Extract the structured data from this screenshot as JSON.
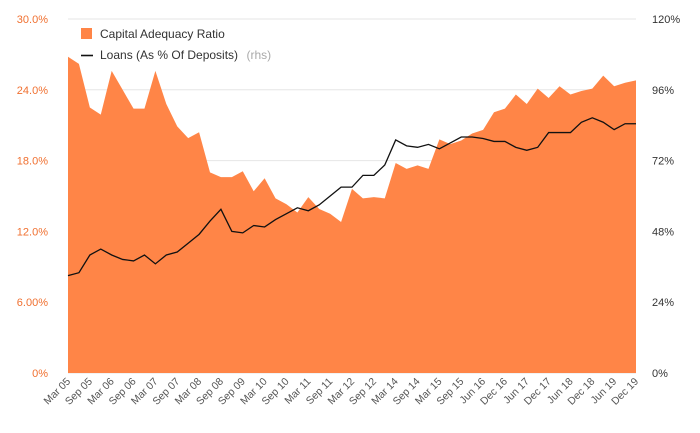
{
  "chart_data": {
    "type": "area",
    "colors": {
      "area": "#ff8547",
      "line": "#111111",
      "left_axis": "#f07030",
      "grid": "#e6e6e6"
    },
    "legend": {
      "placement": "top-left",
      "items": [
        {
          "label": "Capital Adequacy Ratio",
          "suffix": ""
        },
        {
          "label": "Loans (As % Of Deposits)",
          "suffix": "(rhs)"
        }
      ]
    },
    "y_left": {
      "min": 0,
      "max": 30,
      "ticks": [
        "0%",
        "6.00%",
        "12.0%",
        "18.0%",
        "24.0%",
        "30.0%"
      ]
    },
    "y_right": {
      "min": 0,
      "max": 120,
      "ticks": [
        "0%",
        "24%",
        "48%",
        "72%",
        "96%",
        "120%"
      ]
    },
    "x_labels": [
      "Mar 05",
      "Sep 05",
      "Mar 06",
      "Sep 06",
      "Mar 07",
      "Sep 07",
      "Mar 08",
      "Sep 08",
      "Sep 09",
      "Mar 10",
      "Sep 10",
      "Mar 11",
      "Sep 11",
      "Mar 12",
      "Sep 12",
      "Mar 14",
      "Sep 14",
      "Mar 15",
      "Sep 15",
      "Jun 16",
      "Dec 16",
      "Jun 17",
      "Dec 17",
      "Jun 18",
      "Dec 18",
      "Jun 19",
      "Dec 19"
    ],
    "series": [
      {
        "name": "Capital Adequacy Ratio",
        "axis": "left",
        "kind": "area",
        "values": [
          26.8,
          26.2,
          22.5,
          21.9,
          25.6,
          24.0,
          22.4,
          22.4,
          25.6,
          22.8,
          20.9,
          19.9,
          20.4,
          17.0,
          16.6,
          16.6,
          17.1,
          15.4,
          16.5,
          14.8,
          14.3,
          13.6,
          14.9,
          13.9,
          13.5,
          12.8,
          15.6,
          14.8,
          14.9,
          14.8,
          17.8,
          17.3,
          17.6,
          17.3,
          19.8,
          19.4,
          19.7,
          20.3,
          20.6,
          22.1,
          22.4,
          23.6,
          22.8,
          24.1,
          23.3,
          24.3,
          23.6,
          23.9,
          24.1,
          25.2,
          24.3,
          24.6,
          24.8
        ]
      },
      {
        "name": "Loans (As % Of Deposits)",
        "axis": "right",
        "kind": "line",
        "values": [
          33,
          34,
          40,
          42,
          40,
          38.5,
          38,
          40,
          37,
          40,
          41,
          44,
          47,
          51.5,
          55.5,
          48,
          47.5,
          50,
          49.5,
          52,
          54,
          56,
          55,
          57,
          60,
          63,
          63,
          67,
          67,
          70.5,
          79,
          77,
          76.5,
          77.5,
          76,
          78,
          80,
          80,
          79.5,
          78.5,
          78.5,
          76.5,
          75.5,
          76.5,
          81.5,
          81.5,
          81.5,
          85,
          86.5,
          85,
          82.5,
          84.5,
          84.5
        ]
      }
    ]
  }
}
